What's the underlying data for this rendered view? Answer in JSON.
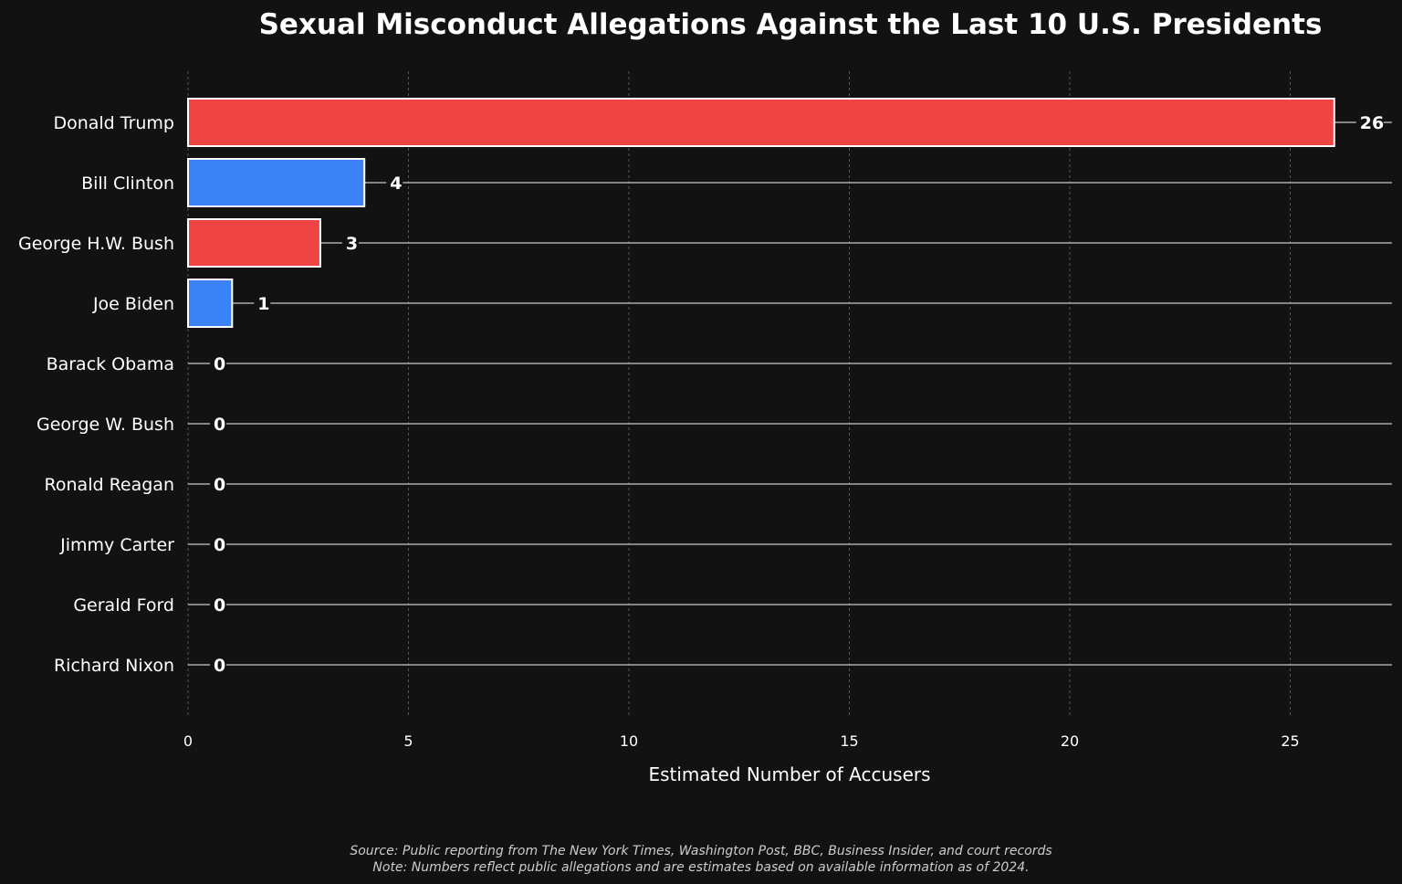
{
  "chart_data": {
    "type": "bar",
    "orientation": "horizontal",
    "title": "Sexual Misconduct Allegations Against the Last 10 U.S. Presidents",
    "xlabel": "Estimated Number of Accusers",
    "ylabel": "",
    "xlim": [
      0,
      27.3
    ],
    "xticks": [
      "0",
      "5",
      "10",
      "15",
      "20",
      "25"
    ],
    "grid": "vertical-dashed",
    "categories": [
      "Donald Trump",
      "Bill Clinton",
      "George H.W. Bush",
      "Joe Biden",
      "Barack Obama",
      "George W. Bush",
      "Ronald Reagan",
      "Jimmy Carter",
      "Gerald Ford",
      "Richard Nixon"
    ],
    "values": [
      26,
      4,
      3,
      1,
      0,
      0,
      0,
      0,
      0,
      0
    ],
    "party_colors": [
      "#ef4444",
      "#3b82f6",
      "#ef4444",
      "#3b82f6",
      "#3b82f6",
      "#ef4444",
      "#ef4444",
      "#3b82f6",
      "#ef4444",
      "#ef4444"
    ]
  },
  "footnotes": {
    "source": "Source: Public reporting from The New York Times, Washington Post, BBC, Business Insider, and court records",
    "note": "Note: Numbers reflect public allegations and are estimates based on available information as of 2024."
  },
  "colors": {
    "background": "#121212",
    "republican": "#ef4444",
    "democrat": "#3b82f6",
    "bar_edge": "#ffffff",
    "gridline": "#555555",
    "leader_line": "#aaaaaa"
  }
}
